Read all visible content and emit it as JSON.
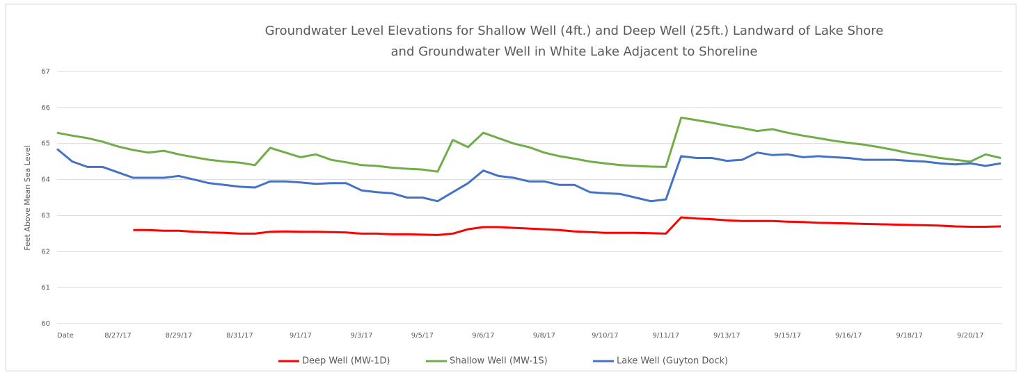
{
  "chart_data": {
    "type": "line",
    "title": "Groundwater Level Elevations for Shallow Well (4ft.) and Deep Well (25ft.) Landward of Lake Shore",
    "subtitle": "and  Groundwater Well in White Lake Adjacent to Shoreline",
    "y_label": "Feet Above Mean Sea Level",
    "categories": [
      "Date",
      null,
      null,
      null,
      "8/27/17",
      null,
      null,
      null,
      "8/29/17",
      null,
      null,
      null,
      "8/31/17",
      null,
      null,
      null,
      "9/1/17",
      null,
      null,
      null,
      "9/3/17",
      null,
      null,
      null,
      "9/5/17",
      null,
      null,
      null,
      "9/6/17",
      null,
      null,
      null,
      "9/8/17",
      null,
      null,
      null,
      "9/10/17",
      null,
      null,
      null,
      "9/11/17",
      null,
      null,
      null,
      "9/13/17",
      null,
      null,
      null,
      "9/15/17",
      null,
      null,
      null,
      "9/16/17",
      null,
      null,
      null,
      "9/18/17",
      null,
      null,
      null,
      "9/20/17",
      null,
      null
    ],
    "series": [
      {
        "name": "Deep Well (MW-1D)",
        "color": "#ff0000",
        "values": [
          null,
          null,
          null,
          null,
          null,
          62.6,
          62.6,
          62.58,
          62.58,
          62.55,
          62.53,
          62.52,
          62.5,
          62.5,
          62.55,
          62.56,
          62.55,
          62.55,
          62.54,
          62.53,
          62.5,
          62.5,
          62.48,
          62.48,
          62.47,
          62.46,
          62.5,
          62.62,
          62.68,
          62.68,
          62.66,
          62.64,
          62.62,
          62.6,
          62.56,
          62.54,
          62.52,
          62.52,
          62.52,
          62.51,
          62.5,
          62.95,
          62.92,
          62.9,
          62.87,
          62.85,
          62.85,
          62.85,
          62.83,
          62.82,
          62.8,
          62.79,
          62.78,
          62.77,
          62.76,
          62.75,
          62.74,
          62.73,
          62.72,
          62.7,
          62.69,
          62.69,
          62.7
        ]
      },
      {
        "name": "Shallow Well (MW-1S)",
        "color": "#70ad47",
        "values": [
          65.3,
          65.22,
          65.15,
          65.05,
          64.92,
          64.82,
          64.75,
          64.8,
          64.7,
          64.62,
          64.55,
          64.5,
          64.47,
          64.4,
          64.88,
          64.75,
          64.62,
          64.7,
          64.55,
          64.48,
          64.4,
          64.38,
          64.33,
          64.3,
          64.28,
          64.22,
          65.1,
          64.9,
          65.3,
          65.15,
          65.0,
          64.9,
          64.75,
          64.65,
          64.58,
          64.5,
          64.45,
          64.4,
          64.38,
          64.36,
          64.35,
          65.72,
          65.65,
          65.58,
          65.5,
          65.43,
          65.35,
          65.4,
          65.3,
          65.22,
          65.15,
          65.08,
          65.02,
          64.97,
          64.9,
          64.82,
          64.73,
          64.67,
          64.6,
          64.55,
          64.5,
          64.7,
          64.6
        ]
      },
      {
        "name": "Lake Well (Guyton Dock)",
        "color": "#4472c4",
        "values": [
          64.85,
          64.5,
          64.35,
          64.35,
          64.2,
          64.05,
          64.05,
          64.05,
          64.1,
          64.0,
          63.9,
          63.85,
          63.8,
          63.78,
          63.95,
          63.95,
          63.92,
          63.88,
          63.9,
          63.9,
          63.7,
          63.65,
          63.62,
          63.5,
          63.5,
          63.4,
          63.65,
          63.9,
          64.25,
          64.1,
          64.05,
          63.95,
          63.95,
          63.85,
          63.85,
          63.65,
          63.62,
          63.6,
          63.5,
          63.4,
          63.45,
          64.65,
          64.6,
          64.6,
          64.52,
          64.55,
          64.75,
          64.68,
          64.7,
          64.62,
          64.65,
          64.62,
          64.6,
          64.55,
          64.55,
          64.55,
          64.52,
          64.5,
          64.45,
          64.42,
          64.45,
          64.38,
          64.45
        ]
      }
    ],
    "ylim": [
      60,
      67
    ],
    "yticks": [
      60,
      61,
      62,
      63,
      64,
      65,
      66,
      67
    ],
    "grid": true
  }
}
